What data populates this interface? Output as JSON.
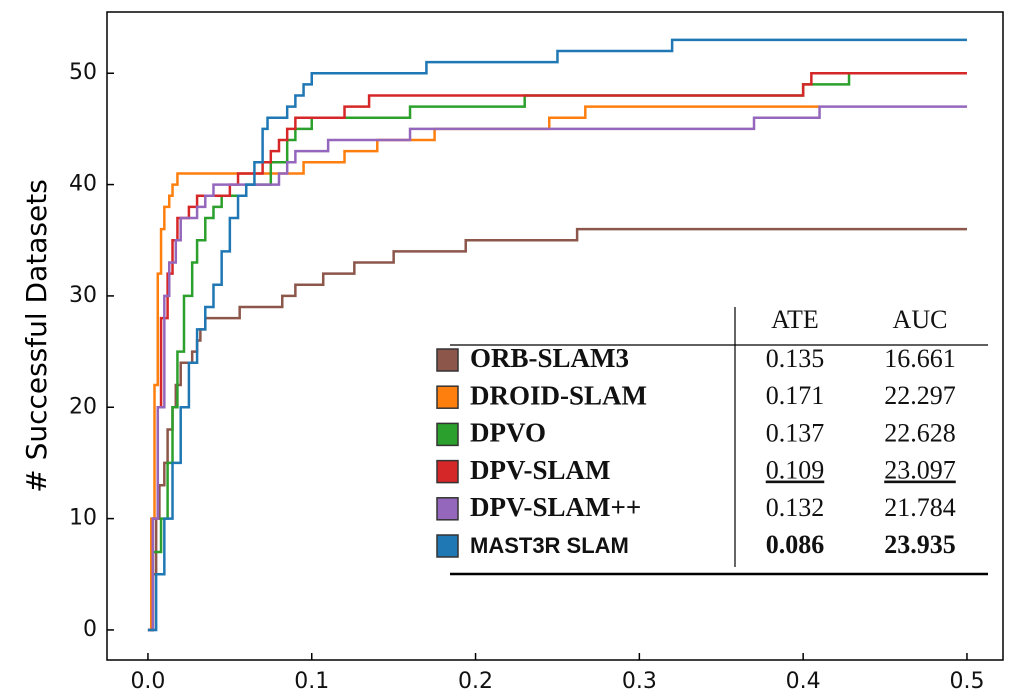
{
  "chart_data": {
    "type": "step",
    "y_label": "# Successful Datasets",
    "xlim": [
      -0.025,
      0.522
    ],
    "ylim": [
      -2.7,
      55.5
    ],
    "xticks": [
      {
        "value": 0,
        "label": "0.0"
      },
      0.1,
      0.2,
      0.3,
      0.4,
      0.5
    ],
    "yticks": [
      0,
      10,
      20,
      30,
      40,
      50
    ],
    "series": [
      {
        "name": "ORB-SLAM3",
        "color": "#8c564b",
        "x": [
          0,
          0.003,
          0.005,
          0.007,
          0.01,
          0.012,
          0.015,
          0.017,
          0.02,
          0.027,
          0.03,
          0.032,
          0.035,
          0.056,
          0.082,
          0.09,
          0.107,
          0.126,
          0.15,
          0.194,
          0.262,
          0.5
        ],
        "values": [
          0,
          5,
          10,
          13,
          15,
          18,
          20,
          22,
          24,
          25,
          26,
          27,
          28,
          29,
          30,
          31,
          32,
          33,
          34,
          35,
          36,
          36
        ]
      },
      {
        "name": "DROID-SLAM",
        "color": "#ff7f0e",
        "x": [
          0,
          0.002,
          0.004,
          0.006,
          0.008,
          0.01,
          0.013,
          0.015,
          0.018,
          0.095,
          0.12,
          0.14,
          0.175,
          0.245,
          0.267,
          0.41
        ],
        "values": [
          0,
          10,
          22,
          32,
          36,
          38,
          39,
          40,
          41,
          42,
          43,
          44,
          45,
          46,
          47,
          47
        ]
      },
      {
        "name": "DPVO",
        "color": "#2ca02c",
        "x": [
          0,
          0.003,
          0.008,
          0.012,
          0.015,
          0.018,
          0.022,
          0.027,
          0.03,
          0.035,
          0.04,
          0.045,
          0.06,
          0.075,
          0.085,
          0.09,
          0.1,
          0.16,
          0.23,
          0.4,
          0.428
        ],
        "values": [
          0,
          7,
          10,
          15,
          20,
          25,
          30,
          33,
          35,
          37,
          38,
          39,
          40,
          42,
          44,
          45,
          46,
          47,
          48,
          49,
          50
        ]
      },
      {
        "name": "DPV-SLAM",
        "color": "#d62728",
        "x": [
          0,
          0.003,
          0.006,
          0.008,
          0.012,
          0.015,
          0.018,
          0.025,
          0.03,
          0.05,
          0.055,
          0.07,
          0.075,
          0.08,
          0.085,
          0.09,
          0.12,
          0.135,
          0.4,
          0.405,
          0.5
        ],
        "values": [
          0,
          10,
          20,
          28,
          32,
          35,
          37,
          38,
          39,
          40,
          41,
          42,
          43,
          44,
          45,
          46,
          47,
          48,
          49,
          50,
          50
        ]
      },
      {
        "name": "DPV-SLAM++",
        "color": "#9467bd",
        "x": [
          0,
          0.003,
          0.006,
          0.01,
          0.013,
          0.017,
          0.02,
          0.03,
          0.035,
          0.04,
          0.08,
          0.085,
          0.09,
          0.11,
          0.16,
          0.37,
          0.41,
          0.5
        ],
        "values": [
          0,
          10,
          20,
          30,
          33,
          35,
          37,
          38,
          39,
          40,
          41,
          42,
          43,
          44,
          45,
          46,
          47,
          47
        ]
      },
      {
        "name": "MAST3R SLAM",
        "color": "#1f77b4",
        "x": [
          0,
          0.005,
          0.01,
          0.015,
          0.02,
          0.025,
          0.03,
          0.035,
          0.04,
          0.045,
          0.05,
          0.055,
          0.06,
          0.065,
          0.07,
          0.073,
          0.085,
          0.09,
          0.095,
          0.1,
          0.17,
          0.25,
          0.32,
          0.5
        ],
        "values": [
          0,
          5,
          10,
          15,
          20,
          24,
          27,
          29,
          31,
          34,
          37,
          39,
          40,
          42,
          45,
          46,
          47,
          48,
          49,
          50,
          51,
          52,
          53,
          53
        ]
      }
    ],
    "table": {
      "columns": [
        "ATE",
        "AUC"
      ],
      "rows": [
        [
          0.135,
          16.661
        ],
        [
          0.171,
          22.297
        ],
        [
          0.137,
          22.628
        ],
        [
          0.109,
          23.097
        ],
        [
          0.132,
          21.784
        ],
        [
          0.086,
          23.935
        ]
      ]
    }
  }
}
